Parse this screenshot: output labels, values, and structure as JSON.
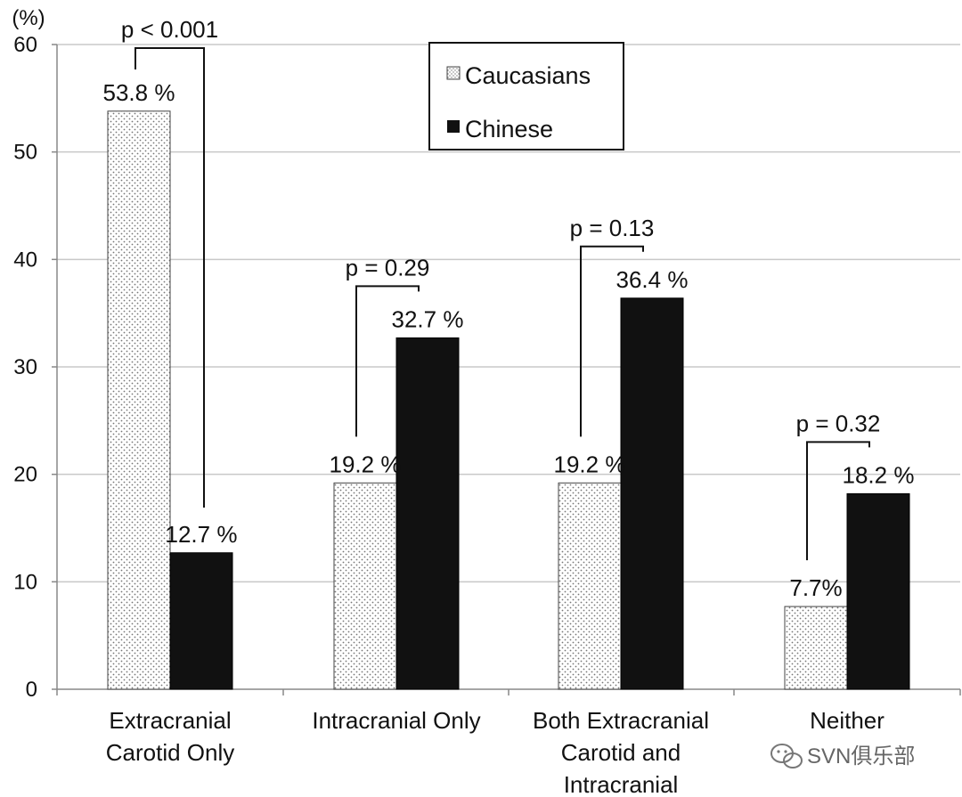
{
  "chart_data": {
    "type": "bar",
    "yunit": "(%)",
    "ylim": [
      0,
      60
    ],
    "yticks": [
      0,
      10,
      20,
      30,
      40,
      50,
      60
    ],
    "grid": true,
    "legend_position": "top-center",
    "categories": [
      [
        "Extracranial",
        "Carotid Only"
      ],
      [
        "Intracranial Only"
      ],
      [
        "Both Extracranial",
        "Carotid and",
        "Intracranial"
      ],
      [
        "Neither"
      ]
    ],
    "series": [
      {
        "name": "Caucasians",
        "values": [
          53.8,
          19.2,
          19.2,
          7.7
        ],
        "labels": [
          "53.8 %",
          "19.2 %",
          "19.2 %",
          "7.7%"
        ],
        "fill": "dotted"
      },
      {
        "name": "Chinese",
        "values": [
          12.7,
          32.7,
          36.4,
          18.2
        ],
        "labels": [
          "12.7 %",
          "32.7 %",
          "36.4 %",
          "18.2 %"
        ],
        "fill": "#111111"
      }
    ],
    "p_values": [
      "p < 0.001",
      "p = 0.29",
      "p = 0.13",
      "p = 0.32"
    ]
  },
  "watermark": "SVN俱乐部",
  "colors": {
    "bar_dark": "#111111",
    "grid": "#c8c8c8",
    "axis": "#888888"
  }
}
